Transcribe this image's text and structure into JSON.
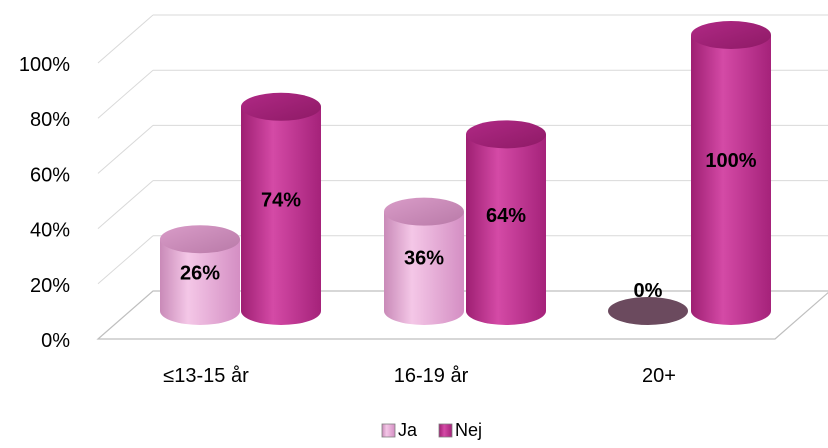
{
  "chart_data": {
    "type": "bar",
    "style": "3d-cylinder",
    "categories": [
      "≤13-15 år",
      "16-19 år",
      "20+"
    ],
    "series": [
      {
        "name": "Ja",
        "values": [
          26,
          36,
          0
        ],
        "labels": [
          "26%",
          "36%",
          "0%"
        ],
        "color": "#E8A6D4"
      },
      {
        "name": "Nej",
        "values": [
          74,
          64,
          100
        ],
        "labels": [
          "74%",
          "64%",
          "100%"
        ],
        "color": "#C2308F"
      }
    ],
    "yticks": [
      "0%",
      "20%",
      "40%",
      "60%",
      "80%",
      "100%"
    ],
    "ylim": [
      0,
      100
    ],
    "grid": true,
    "legend_position": "bottom"
  }
}
